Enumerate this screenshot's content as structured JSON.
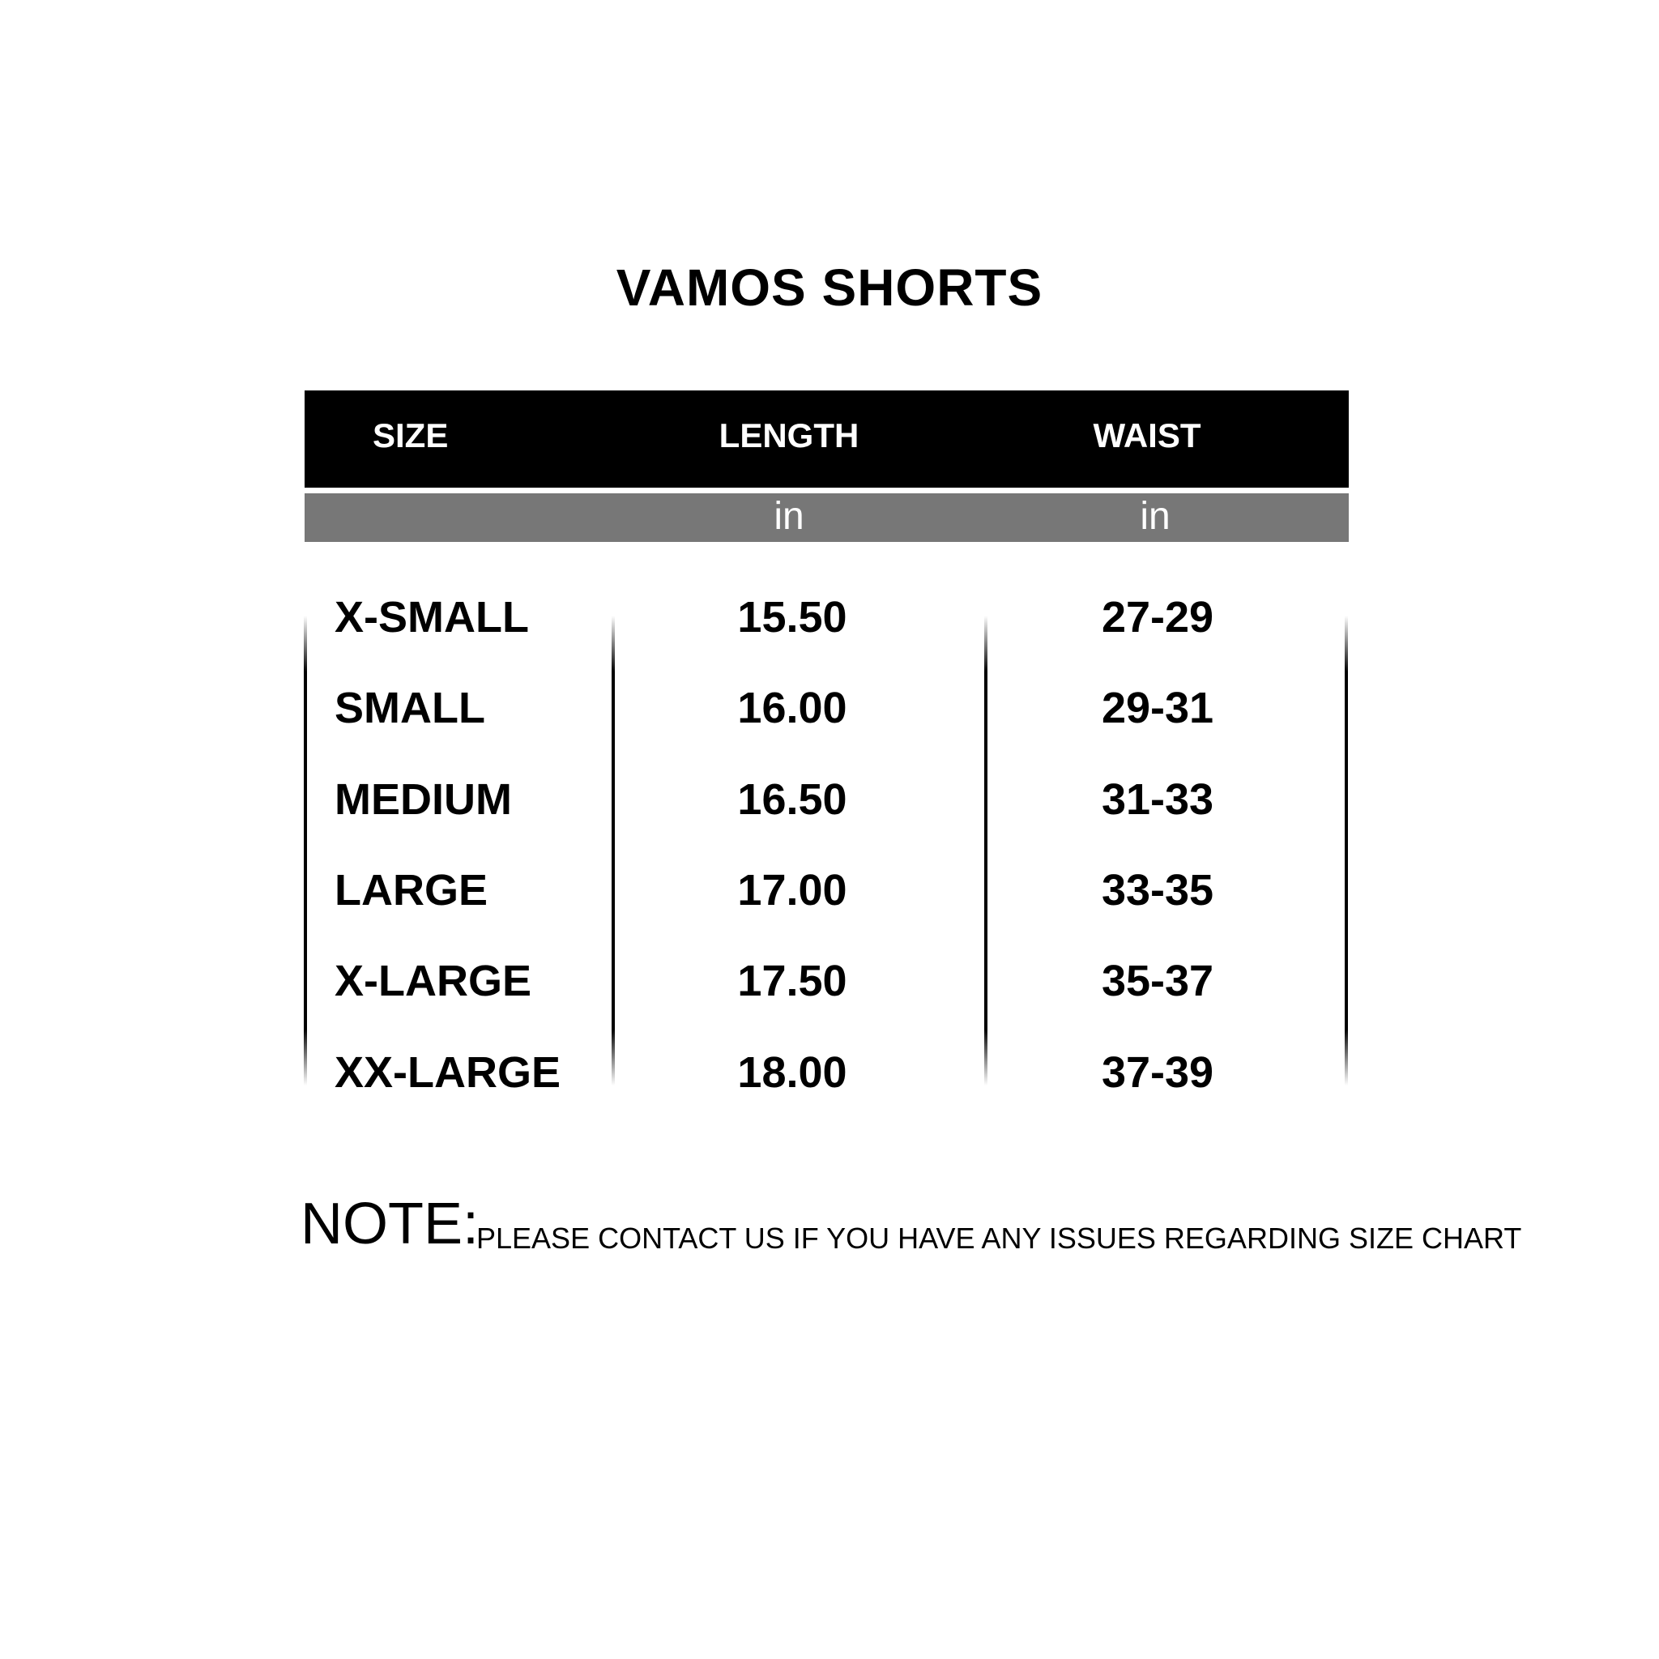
{
  "title": "VAMOS SHORTS",
  "table": {
    "headers": [
      "SIZE",
      "LENGTH",
      "WAIST"
    ],
    "units": [
      "",
      "in",
      "in"
    ],
    "rows": [
      [
        "X-SMALL",
        "15.50",
        "27-29"
      ],
      [
        "SMALL",
        "16.00",
        "29-31"
      ],
      [
        "MEDIUM",
        "16.50",
        "31-33"
      ],
      [
        "LARGE",
        "17.00",
        "33-35"
      ],
      [
        "X-LARGE",
        "17.50",
        "35-37"
      ],
      [
        "XX-LARGE",
        "18.00",
        "37-39"
      ]
    ]
  },
  "note": {
    "label": "NOTE:",
    "text": "PLEASE CONTACT US IF YOU HAVE ANY ISSUES REGARDING SIZE CHART"
  },
  "colors": {
    "header_bg": "#000000",
    "units_bg": "#777777"
  }
}
